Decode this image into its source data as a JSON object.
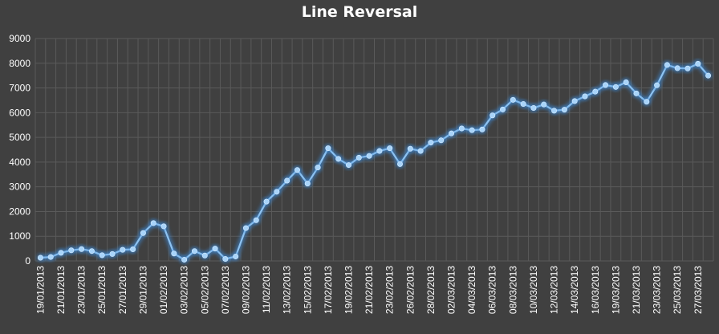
{
  "chart_data": {
    "type": "line",
    "title": "Line Reversal",
    "xlabel": "",
    "ylabel": "",
    "ylim": [
      0,
      9000
    ],
    "yticks": [
      0,
      1000,
      2000,
      3000,
      4000,
      5000,
      6000,
      7000,
      8000,
      9000
    ],
    "grid": true,
    "legend": "none",
    "colors": {
      "background": "#404040",
      "grid": "#5a5a5a",
      "line": "#8ec3f2",
      "marker": "#a8d4fa",
      "glow": "#3d8ad8",
      "text": "#ffffff"
    },
    "tick_labels": [
      "19/01/2013",
      "21/01/2013",
      "23/01/2013",
      "25/01/2013",
      "27/01/2013",
      "29/01/2013",
      "01/02/2013",
      "03/02/2013",
      "05/02/2013",
      "07/02/2013",
      "09/02/2013",
      "11/02/2013",
      "13/02/2013",
      "15/02/2013",
      "17/02/2013",
      "19/02/2013",
      "21/02/2013",
      "23/02/2013",
      "26/02/2013",
      "28/02/2013",
      "02/03/2013",
      "04/03/2013",
      "06/03/2013",
      "08/03/2013",
      "10/03/2013",
      "12/03/2013",
      "14/03/2013",
      "16/03/2013",
      "19/03/2013",
      "21/03/2013",
      "23/03/2013",
      "25/03/2013",
      "27/03/2013"
    ],
    "series": [
      {
        "values": [
          130,
          160,
          330,
          430,
          480,
          400,
          230,
          280,
          450,
          470,
          1130,
          1530,
          1400,
          300,
          50,
          400,
          220,
          500,
          80,
          180,
          1330,
          1650,
          2400,
          2800,
          3250,
          3680,
          3130,
          3780,
          4560,
          4130,
          3880,
          4180,
          4250,
          4450,
          4560,
          3920,
          4540,
          4450,
          4790,
          4880,
          5160,
          5360,
          5290,
          5320,
          5890,
          6130,
          6520,
          6350,
          6190,
          6330,
          6080,
          6120,
          6470,
          6660,
          6850,
          7120,
          7040,
          7230,
          6780,
          6440,
          7110,
          7930,
          7800,
          7790,
          7980,
          7500
        ]
      }
    ]
  }
}
